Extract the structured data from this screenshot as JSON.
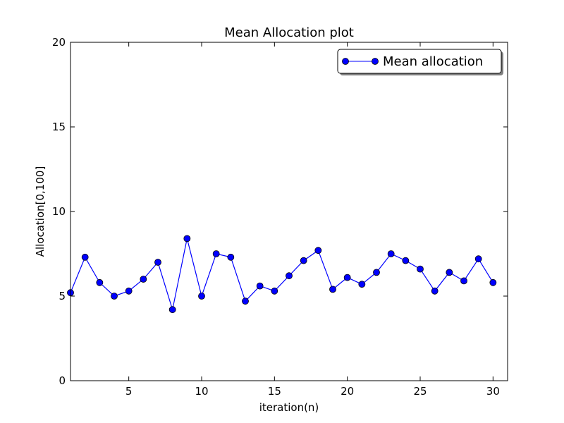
{
  "chart_data": {
    "type": "line",
    "title": "Mean Allocation plot",
    "xlabel": "iteration(n)",
    "ylabel": "Allocation[0,100]",
    "xlim": [
      1,
      31
    ],
    "ylim": [
      0,
      20
    ],
    "xticks": [
      5,
      10,
      15,
      20,
      25,
      30
    ],
    "yticks": [
      0,
      5,
      10,
      15,
      20
    ],
    "grid": false,
    "legend_position": "top-right",
    "series": [
      {
        "name": "Mean allocation",
        "color": "#0000ff",
        "marker": "circle",
        "x": [
          1,
          2,
          3,
          4,
          5,
          6,
          7,
          8,
          9,
          10,
          11,
          12,
          13,
          14,
          15,
          16,
          17,
          18,
          19,
          20,
          21,
          22,
          23,
          24,
          25,
          26,
          27,
          28,
          29,
          30
        ],
        "values": [
          5.2,
          7.3,
          5.8,
          5.0,
          5.3,
          6.0,
          7.0,
          4.2,
          8.4,
          5.0,
          7.5,
          7.3,
          4.7,
          5.6,
          5.3,
          6.2,
          7.1,
          7.7,
          5.4,
          6.1,
          5.7,
          6.4,
          7.5,
          7.1,
          6.6,
          5.3,
          6.4,
          5.9,
          7.2,
          5.8
        ]
      }
    ]
  }
}
